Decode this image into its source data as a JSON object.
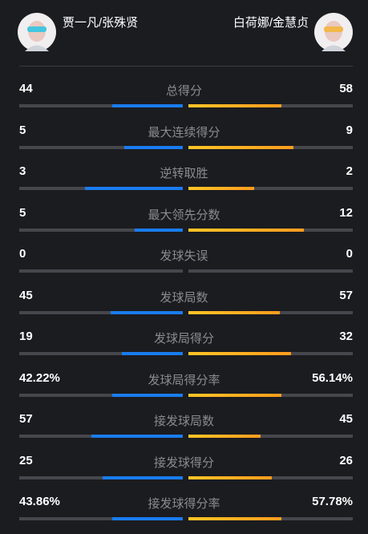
{
  "header": {
    "left_player": "贾一凡/张殊贤",
    "right_player": "白荷娜/金慧贞"
  },
  "stats": [
    {
      "label": "总得分",
      "left": 44,
      "right": 58
    },
    {
      "label": "最大连续得分",
      "left": 5,
      "right": 9
    },
    {
      "label": "逆转取胜",
      "left": 3,
      "right": 2
    },
    {
      "label": "最大领先分数",
      "left": 5,
      "right": 12
    },
    {
      "label": "发球失误",
      "left": 0,
      "right": 0
    },
    {
      "label": "发球局数",
      "left": 45,
      "right": 57
    },
    {
      "label": "发球局得分",
      "left": 19,
      "right": 32
    },
    {
      "label": "发球局得分率",
      "left": 42.22,
      "left_label": "42.22%",
      "right": 56.14,
      "right_label": "56.14%"
    },
    {
      "label": "接发球局数",
      "left": 57,
      "right": 45
    },
    {
      "label": "接发球得分",
      "left": 25,
      "right": 26
    },
    {
      "label": "接发球得分率",
      "left": 43.86,
      "left_label": "43.86%",
      "right": 57.78,
      "right_label": "57.78%"
    }
  ]
}
